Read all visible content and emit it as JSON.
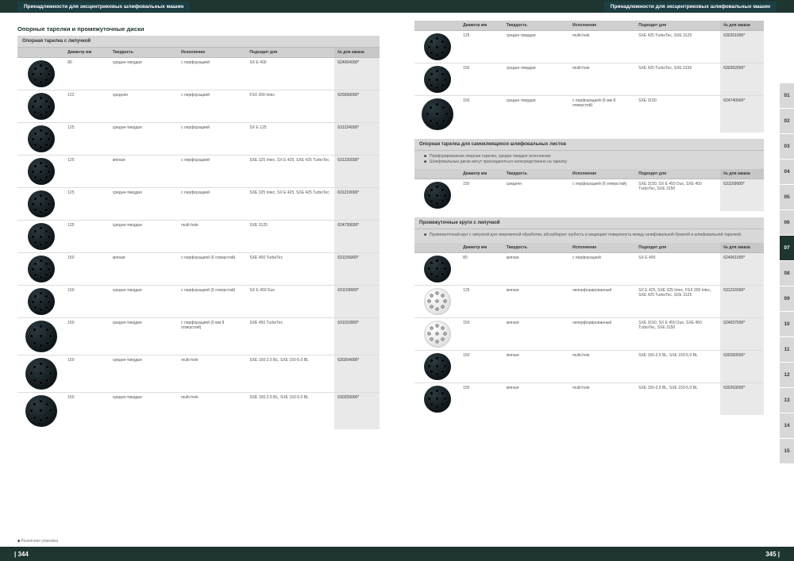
{
  "header": {
    "title": "Принадлежности для эксцентриковых шлифовальных машин"
  },
  "footer": {
    "page_left": "| 344",
    "page_right": "345 |"
  },
  "footnote": "Розничная упаковка",
  "section_main_title": "Опорные тарелки и промежуточные диски",
  "cols": {
    "diameter": "Диаметр\nмм",
    "hardness": "Твердость",
    "exec": "Исполнение",
    "fit": "Подходит для",
    "order": "№ для заказа"
  },
  "index": [
    "01",
    "02",
    "03",
    "04",
    "05",
    "06",
    "07",
    "08",
    "09",
    "10",
    "11",
    "12",
    "13",
    "14",
    "15"
  ],
  "index_active": "07",
  "table1": {
    "title": "Опорная тарелка с липучкой",
    "rows": [
      {
        "img": "dark",
        "d": "80",
        "h": "средне-твердая",
        "e": "с перфорацией",
        "f": "SX E 400",
        "o": "624064000*"
      },
      {
        "img": "dark",
        "d": "122",
        "h": "средняя",
        "e": "с перфорацией",
        "f": "FSX 200 Intec",
        "o": "625658000*"
      },
      {
        "img": "dark",
        "d": "125",
        "h": "средне-твердая",
        "e": "с перфорацией",
        "f": "SX E 125",
        "o": "631224000*"
      },
      {
        "img": "dark",
        "d": "125",
        "h": "мягкая",
        "e": "с перфорацией",
        "f": "SXE 325 Intec, SX E 425, SXE 425 TurboTec",
        "o": "631220000*"
      },
      {
        "img": "dark",
        "d": "125",
        "h": "средне-твердая",
        "e": "с перфорацией",
        "f": "SXE 325 Intec, SX E 425, SXE 425 TurboTec",
        "o": "631219000*"
      },
      {
        "img": "dark",
        "d": "125",
        "h": "средне-твердая",
        "e": "multi-hole",
        "f": "SXE 3125",
        "o": "624739000*"
      },
      {
        "img": "dark",
        "d": "150",
        "h": "мягкая",
        "e": "с перфорацией (6 отверстий)",
        "f": "SXE 450 TurboTec",
        "o": "631156000*"
      },
      {
        "img": "dark",
        "d": "150",
        "h": "средне-твердая",
        "e": "с перфорацией (6 отверстий)",
        "f": "SX E 450 Duo",
        "o": "631158000*"
      },
      {
        "img": "dark lg",
        "d": "150",
        "h": "средне-твердая",
        "e": "с перфорацией (6 мм 8 отверстий)",
        "f": "SXE 450 TurboTec",
        "o": "631150000*"
      },
      {
        "img": "dark lg",
        "d": "150",
        "h": "средне-твердая",
        "e": "multi-hole",
        "f": "SXE 150-2.5 BL, SXE 150-5.0 BL",
        "o": "630264000*"
      },
      {
        "img": "dark lg",
        "d": "150",
        "h": "средне-твердая",
        "e": "multi-hole",
        "f": "SXE 150-2.5 BL, SXE 150-5.0 BL",
        "o": "630259000*"
      }
    ]
  },
  "table2": {
    "rows": [
      {
        "img": "dark",
        "d": "125",
        "h": "средне-твердая",
        "e": "multi-hole",
        "f": "SXE 425 TurboTec, SXE 3125",
        "o": "630261000*"
      },
      {
        "img": "dark",
        "d": "150",
        "h": "средне-твердая",
        "e": "multi-hole",
        "f": "SXE 425 TurboTec, SXE 3150",
        "o": "630262000*"
      },
      {
        "img": "dark lg",
        "d": "150",
        "h": "средне-твердая",
        "e": "с перфорацией (6 мм 8 отверстий)",
        "f": "SXE 3150",
        "o": "624740000*"
      }
    ]
  },
  "table3": {
    "title": "Опорная тарелка для самоклеящихся шлифовальных листов",
    "notes": [
      "Перфорированная опорная тарелка, средне-твердое исполнение",
      "Шлифовальные диски могут присоединяться непосредственно на тарелку"
    ],
    "rows": [
      {
        "img": "dark",
        "d": "150",
        "h": "средняя",
        "e": "с перфорацией (6 отверстий)",
        "f": "SXE 3150, SX E 450 Duo, SXE 450 TurboTec, SXE 3150",
        "o": "631169000*"
      }
    ]
  },
  "table4": {
    "title": "Промежуточные круги с липучкой",
    "notes": [
      "Промежуточный круг с липучкой для сверхмягкой обработки, абсорбирует грубость и защищает поверхность между шлифовальной бумагой и шлифовальной тарелкой."
    ],
    "rows": [
      {
        "img": "dark sm",
        "d": "80",
        "h": "мягкая",
        "e": "с перфорацией",
        "f": "SX E 400",
        "o": "624061000*"
      },
      {
        "img": "white",
        "d": "125",
        "h": "мягкая",
        "e": "неперфорированный",
        "f": "SX E 425, SXE 325 Intec, FSX 200 Intec, SXE 425 TurboTec, SXE 3125",
        "o": "631216000*"
      },
      {
        "img": "white",
        "d": "150",
        "h": "мягкая",
        "e": "неперфорированный",
        "f": "SXE 3150, SX E 450 Duo, SXE 450 TurboTec, SXE 3150",
        "o": "624037000*"
      },
      {
        "img": "dark",
        "d": "150",
        "h": "мягкая",
        "e": "multi-hole",
        "f": "SXE 150-2.5 BL, SXE 150-5.0 BL",
        "o": "630260000*"
      },
      {
        "img": "dark",
        "d": "150",
        "h": "мягкая",
        "e": "multi-hole",
        "f": "SXE 150-2.5 BL, SXE 150-5.0 BL",
        "o": "630263000*"
      }
    ]
  }
}
